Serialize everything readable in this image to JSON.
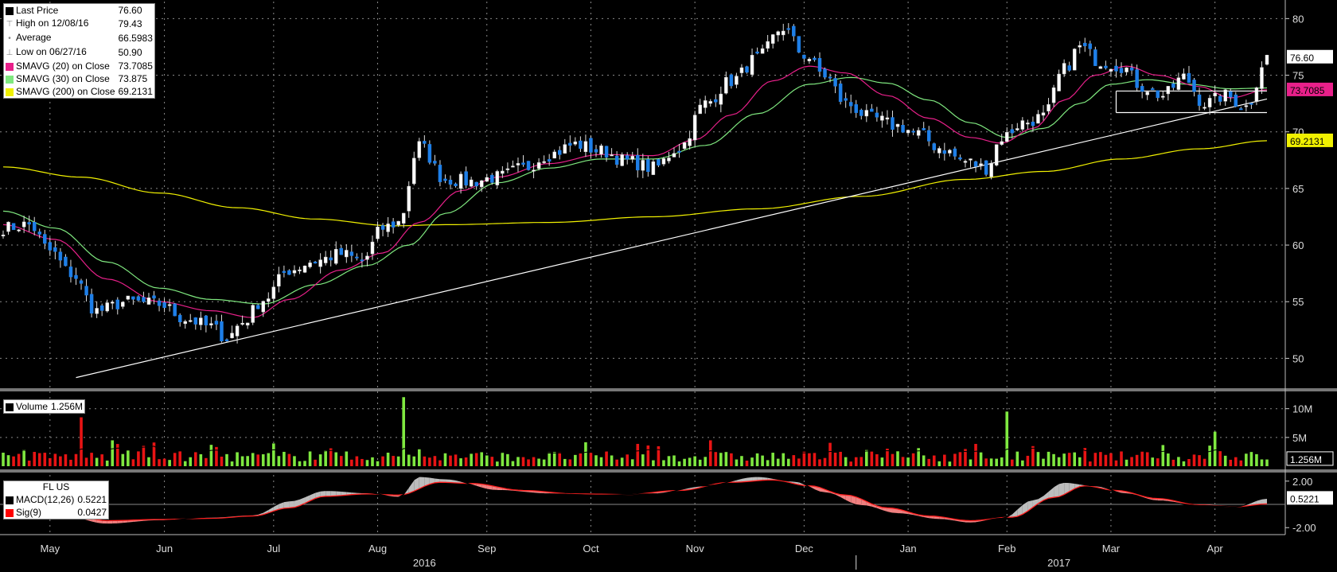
{
  "chart_data": {
    "type": "candlestick",
    "instrument": "FL US",
    "price_panel": {
      "legend": [
        {
          "label": "Last Price",
          "value": "76.60",
          "marker": "black-square"
        },
        {
          "label": "High on 12/08/16",
          "value": "79.43",
          "marker": "high-glyph"
        },
        {
          "label": "Average",
          "value": "66.5983",
          "marker": "avg-glyph"
        },
        {
          "label": "Low on 06/27/16",
          "value": "50.90",
          "marker": "low-glyph"
        },
        {
          "label": "SMAVG (20) on Close",
          "value": "73.7085",
          "marker": "swatch",
          "color": "#e8208a"
        },
        {
          "label": "SMAVG (30) on Close",
          "value": "73.875",
          "marker": "swatch",
          "color": "#7fe87f"
        },
        {
          "label": "SMAVG (200) on Close",
          "value": "69.2131",
          "marker": "swatch",
          "color": "#f0f000"
        }
      ],
      "y_ticks": [
        50,
        55,
        60,
        65,
        70,
        75,
        80
      ],
      "ylim": [
        47.5,
        81.5
      ],
      "price_tags": [
        {
          "value": 76.6,
          "text": "76.60",
          "color": "#ffffff"
        },
        {
          "value": 73.7085,
          "text": "73.7085",
          "color": "#e8208a"
        },
        {
          "value": 69.2131,
          "text": "69.2131",
          "color": "#f0f000"
        }
      ],
      "anchors_close": [
        [
          0,
          61.5
        ],
        [
          5,
          61.8
        ],
        [
          9,
          59.5
        ],
        [
          13,
          57.5
        ],
        [
          18,
          54.2
        ],
        [
          24,
          55
        ],
        [
          30,
          54.8
        ],
        [
          35,
          53.5
        ],
        [
          40,
          52.8
        ],
        [
          43,
          51.8
        ],
        [
          46,
          53.2
        ],
        [
          50,
          55.2
        ],
        [
          55,
          57.8
        ],
        [
          60,
          58.6
        ],
        [
          65,
          59.2
        ],
        [
          69,
          58.6
        ],
        [
          73,
          61.5
        ],
        [
          76,
          62
        ],
        [
          80,
          68.8
        ],
        [
          85,
          65.8
        ],
        [
          90,
          65.6
        ],
        [
          95,
          66
        ],
        [
          100,
          66.8
        ],
        [
          105,
          68
        ],
        [
          110,
          68.9
        ],
        [
          115,
          68.3
        ],
        [
          120,
          67.4
        ],
        [
          125,
          66.8
        ],
        [
          130,
          68.6
        ],
        [
          135,
          72.5
        ],
        [
          140,
          74.5
        ],
        [
          145,
          76.5
        ],
        [
          150,
          79.2
        ],
        [
          154,
          76.8
        ],
        [
          158,
          75
        ],
        [
          162,
          72.5
        ],
        [
          167,
          71.2
        ],
        [
          172,
          70.5
        ],
        [
          176,
          69.8
        ],
        [
          180,
          68.6
        ],
        [
          185,
          67.4
        ],
        [
          189,
          66.8
        ],
        [
          192,
          69.5
        ],
        [
          196,
          70.8
        ],
        [
          200,
          71.3
        ],
        [
          204,
          75.5
        ],
        [
          207,
          77.5
        ],
        [
          211,
          76.2
        ],
        [
          215,
          75.8
        ],
        [
          219,
          74
        ],
        [
          223,
          73.2
        ],
        [
          227,
          74.8
        ],
        [
          231,
          72.5
        ],
        [
          235,
          73.2
        ],
        [
          239,
          72.2
        ],
        [
          243,
          76.6
        ]
      ],
      "sma20_anchors": [
        [
          0,
          61.8
        ],
        [
          10,
          60.5
        ],
        [
          20,
          57
        ],
        [
          30,
          55
        ],
        [
          40,
          54.2
        ],
        [
          48,
          53.6
        ],
        [
          55,
          55.2
        ],
        [
          65,
          57.8
        ],
        [
          73,
          59.3
        ],
        [
          80,
          62
        ],
        [
          88,
          64.8
        ],
        [
          95,
          66
        ],
        [
          105,
          67.2
        ],
        [
          115,
          68
        ],
        [
          125,
          67.9
        ],
        [
          133,
          69.3
        ],
        [
          140,
          71.5
        ],
        [
          148,
          74.5
        ],
        [
          155,
          75.8
        ],
        [
          162,
          75.2
        ],
        [
          170,
          73.2
        ],
        [
          178,
          71.2
        ],
        [
          186,
          69.5
        ],
        [
          192,
          69
        ],
        [
          198,
          70.3
        ],
        [
          204,
          72.8
        ],
        [
          210,
          75
        ],
        [
          216,
          75.8
        ],
        [
          222,
          75
        ],
        [
          230,
          74
        ],
        [
          236,
          73
        ],
        [
          243,
          73.7085
        ]
      ],
      "sma30_anchors": [
        [
          0,
          63
        ],
        [
          10,
          61.5
        ],
        [
          20,
          58.5
        ],
        [
          30,
          56.2
        ],
        [
          40,
          55.2
        ],
        [
          50,
          54.8
        ],
        [
          60,
          56.5
        ],
        [
          70,
          58.2
        ],
        [
          78,
          60
        ],
        [
          85,
          62.8
        ],
        [
          95,
          65.5
        ],
        [
          105,
          66.8
        ],
        [
          115,
          67.6
        ],
        [
          125,
          67.6
        ],
        [
          135,
          68.8
        ],
        [
          145,
          71.6
        ],
        [
          155,
          74.2
        ],
        [
          163,
          74.8
        ],
        [
          170,
          74.3
        ],
        [
          178,
          72.8
        ],
        [
          186,
          70.8
        ],
        [
          193,
          69.5
        ],
        [
          200,
          70.3
        ],
        [
          207,
          72.5
        ],
        [
          213,
          74.2
        ],
        [
          220,
          74.6
        ],
        [
          228,
          74.2
        ],
        [
          236,
          73.8
        ],
        [
          243,
          73.875
        ]
      ],
      "sma200_anchors": [
        [
          0,
          66.9
        ],
        [
          15,
          66
        ],
        [
          30,
          64.6
        ],
        [
          45,
          63.3
        ],
        [
          60,
          62.3
        ],
        [
          75,
          61.7
        ],
        [
          85,
          61.8
        ],
        [
          105,
          62
        ],
        [
          125,
          62.5
        ],
        [
          145,
          63.2
        ],
        [
          165,
          64.3
        ],
        [
          185,
          65.8
        ],
        [
          200,
          66.5
        ],
        [
          215,
          67.6
        ],
        [
          230,
          68.5
        ],
        [
          243,
          69.2131
        ]
      ],
      "trendlines": [
        {
          "from": [
            14,
            48.3
          ],
          "to": [
            243,
            72.9
          ],
          "color": "#ffffff"
        },
        {
          "from": [
            214,
            73.6
          ],
          "to": [
            243,
            73.6
          ],
          "color": "#ffffff"
        },
        {
          "from": [
            214,
            71.7
          ],
          "to": [
            243,
            71.7
          ],
          "color": "#ffffff"
        }
      ]
    },
    "volume_panel": {
      "legend": [
        {
          "label": "Volume",
          "value": "1.256M",
          "marker": "black-square"
        }
      ],
      "y_ticks": [
        {
          "value": 5,
          "label": "5M"
        },
        {
          "value": 10,
          "label": "10M"
        }
      ],
      "ylim": [
        0,
        13
      ],
      "last_tag": "1.256M",
      "spikes": [
        [
          15,
          8.5
        ],
        [
          21,
          4.5
        ],
        [
          77,
          12
        ],
        [
          136,
          4.5
        ],
        [
          193,
          9.5
        ],
        [
          233,
          6
        ]
      ]
    },
    "macd_panel": {
      "title": "FL US",
      "legend": [
        {
          "label": "MACD(12,26)",
          "value": "0.5221",
          "color": "#000000"
        },
        {
          "label": "Sig(9)",
          "value": "0.0427",
          "color": "#ff0000"
        }
      ],
      "y_ticks": [
        {
          "value": 2,
          "label": "2.00"
        },
        {
          "value": -2,
          "label": "-2.00"
        }
      ],
      "ylim": [
        -2.6,
        2.6
      ],
      "last_tag": "0.5221",
      "macd_anchors": [
        [
          0,
          0
        ],
        [
          10,
          -0.8
        ],
        [
          20,
          -1.7
        ],
        [
          30,
          -1.4
        ],
        [
          40,
          -1.1
        ],
        [
          48,
          -0.9
        ],
        [
          55,
          0.3
        ],
        [
          62,
          1.2
        ],
        [
          70,
          1.0
        ],
        [
          76,
          0.6
        ],
        [
          80,
          2.4
        ],
        [
          85,
          2.2
        ],
        [
          95,
          1.2
        ],
        [
          105,
          0.9
        ],
        [
          115,
          0.8
        ],
        [
          125,
          0.9
        ],
        [
          135,
          1.6
        ],
        [
          145,
          2.4
        ],
        [
          152,
          2.0
        ],
        [
          158,
          1.0
        ],
        [
          165,
          -0.1
        ],
        [
          172,
          -0.8
        ],
        [
          180,
          -1.3
        ],
        [
          186,
          -1.6
        ],
        [
          192,
          -1.2
        ],
        [
          198,
          0.4
        ],
        [
          204,
          1.9
        ],
        [
          210,
          1.6
        ],
        [
          216,
          0.9
        ],
        [
          222,
          0.3
        ],
        [
          230,
          -0.1
        ],
        [
          237,
          -0.2
        ],
        [
          243,
          0.5221
        ]
      ],
      "signal_anchors": [
        [
          0,
          0.3
        ],
        [
          10,
          -0.5
        ],
        [
          20,
          -1.4
        ],
        [
          30,
          -1.3
        ],
        [
          40,
          -1.2
        ],
        [
          48,
          -1.0
        ],
        [
          55,
          -0.3
        ],
        [
          62,
          0.7
        ],
        [
          70,
          0.9
        ],
        [
          76,
          0.8
        ],
        [
          84,
          1.9
        ],
        [
          90,
          1.8
        ],
        [
          100,
          1.2
        ],
        [
          110,
          0.9
        ],
        [
          120,
          0.85
        ],
        [
          130,
          1.2
        ],
        [
          140,
          1.9
        ],
        [
          148,
          2.1
        ],
        [
          155,
          1.6
        ],
        [
          162,
          0.8
        ],
        [
          170,
          -0.3
        ],
        [
          178,
          -1.0
        ],
        [
          186,
          -1.4
        ],
        [
          194,
          -1.1
        ],
        [
          202,
          0.6
        ],
        [
          208,
          1.6
        ],
        [
          214,
          1.2
        ],
        [
          222,
          0.5
        ],
        [
          230,
          -0.05
        ],
        [
          237,
          -0.2
        ],
        [
          243,
          0.0427
        ]
      ]
    },
    "x_axis": {
      "months": [
        {
          "label": "May",
          "index": 9
        },
        {
          "label": "Jun",
          "index": 31
        },
        {
          "label": "Jul",
          "index": 52
        },
        {
          "label": "Aug",
          "index": 72
        },
        {
          "label": "Sep",
          "index": 93
        },
        {
          "label": "Oct",
          "index": 113
        },
        {
          "label": "Nov",
          "index": 133
        },
        {
          "label": "Dec",
          "index": 154
        },
        {
          "label": "Jan",
          "index": 174
        },
        {
          "label": "Feb",
          "index": 193
        },
        {
          "label": "Mar",
          "index": 213
        },
        {
          "label": "Apr",
          "index": 233
        }
      ],
      "years": [
        {
          "label": "2016",
          "index": 81
        },
        {
          "label": "2017",
          "index": 203
        }
      ],
      "year_divider_index": 164
    }
  }
}
